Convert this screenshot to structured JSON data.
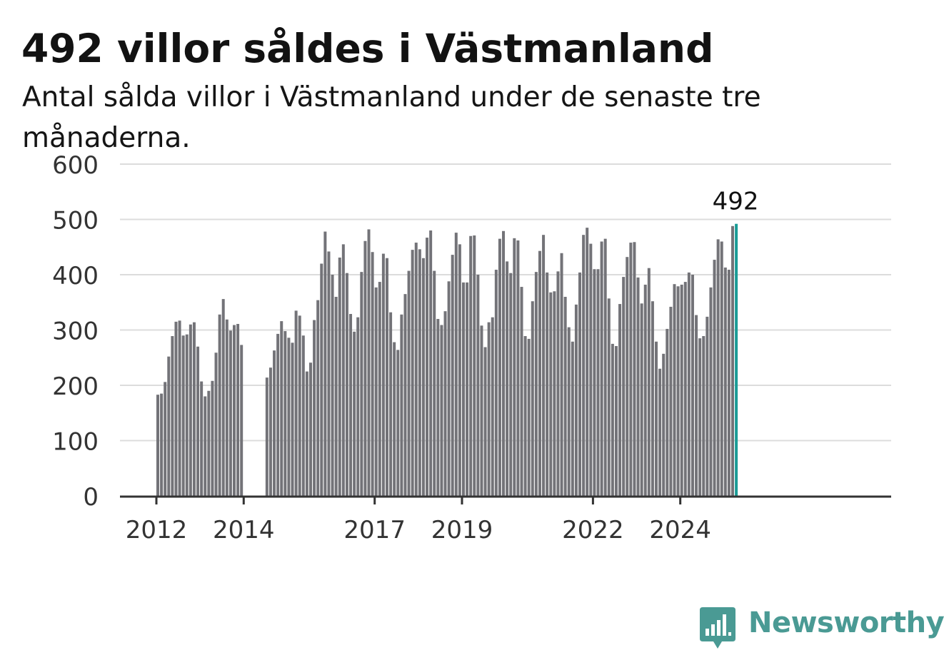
{
  "title": "492 villor såldes i Västmanland",
  "subtitle": "Antal sålda villor i Västmanland under de senaste tre månaderna.",
  "brand": {
    "name": "Newsworthy",
    "icon": "newsworthy-logo-icon",
    "color": "#4a9a94"
  },
  "colors": {
    "bar": "#737378",
    "highlight": "#1a9c96",
    "grid": "#dcdcdc",
    "axis": "#333333"
  },
  "chart_data": {
    "type": "bar",
    "grid": true,
    "ylim": [
      0,
      600
    ],
    "yticks": [
      0,
      100,
      200,
      300,
      400,
      500,
      600
    ],
    "x_tick_labels": [
      "2012",
      "2014",
      "2017",
      "2019",
      "2022",
      "2024"
    ],
    "annotation": {
      "label": "492",
      "value": 492,
      "target": "last-bar"
    },
    "series": [
      {
        "values": [
          183,
          185,
          206,
          252,
          289,
          315,
          317,
          290,
          292,
          310,
          314,
          270,
          207,
          180,
          190,
          208,
          259,
          328,
          356,
          319,
          299,
          309,
          311,
          273
        ]
      },
      {
        "values": [
          214,
          232,
          263,
          293,
          316,
          298,
          286,
          277,
          335,
          326,
          290,
          225,
          241,
          318,
          354,
          420,
          478,
          442,
          400,
          360,
          431,
          455,
          403,
          329,
          297,
          323,
          405,
          461,
          482,
          441,
          377,
          387,
          438,
          430,
          332,
          278,
          264,
          328,
          365,
          407,
          445,
          458,
          446,
          430,
          467,
          480,
          407,
          320,
          309,
          334,
          388,
          436,
          476,
          455,
          386,
          386,
          470,
          471,
          400,
          308,
          269,
          314,
          323,
          409,
          465,
          479,
          424,
          403,
          466,
          462,
          378,
          289,
          284,
          352,
          405,
          443,
          472,
          404,
          368,
          370,
          406,
          439,
          360,
          305,
          279,
          346,
          404,
          472,
          485,
          456,
          410,
          410,
          460,
          465,
          357,
          275,
          271,
          347,
          396,
          432,
          458,
          459,
          395,
          348,
          382,
          412,
          352,
          279,
          230,
          257,
          302,
          342,
          383,
          379,
          382,
          387,
          404,
          400,
          327,
          285,
          289,
          324,
          377,
          427,
          464,
          460,
          413,
          409,
          488,
          492
        ]
      }
    ]
  }
}
